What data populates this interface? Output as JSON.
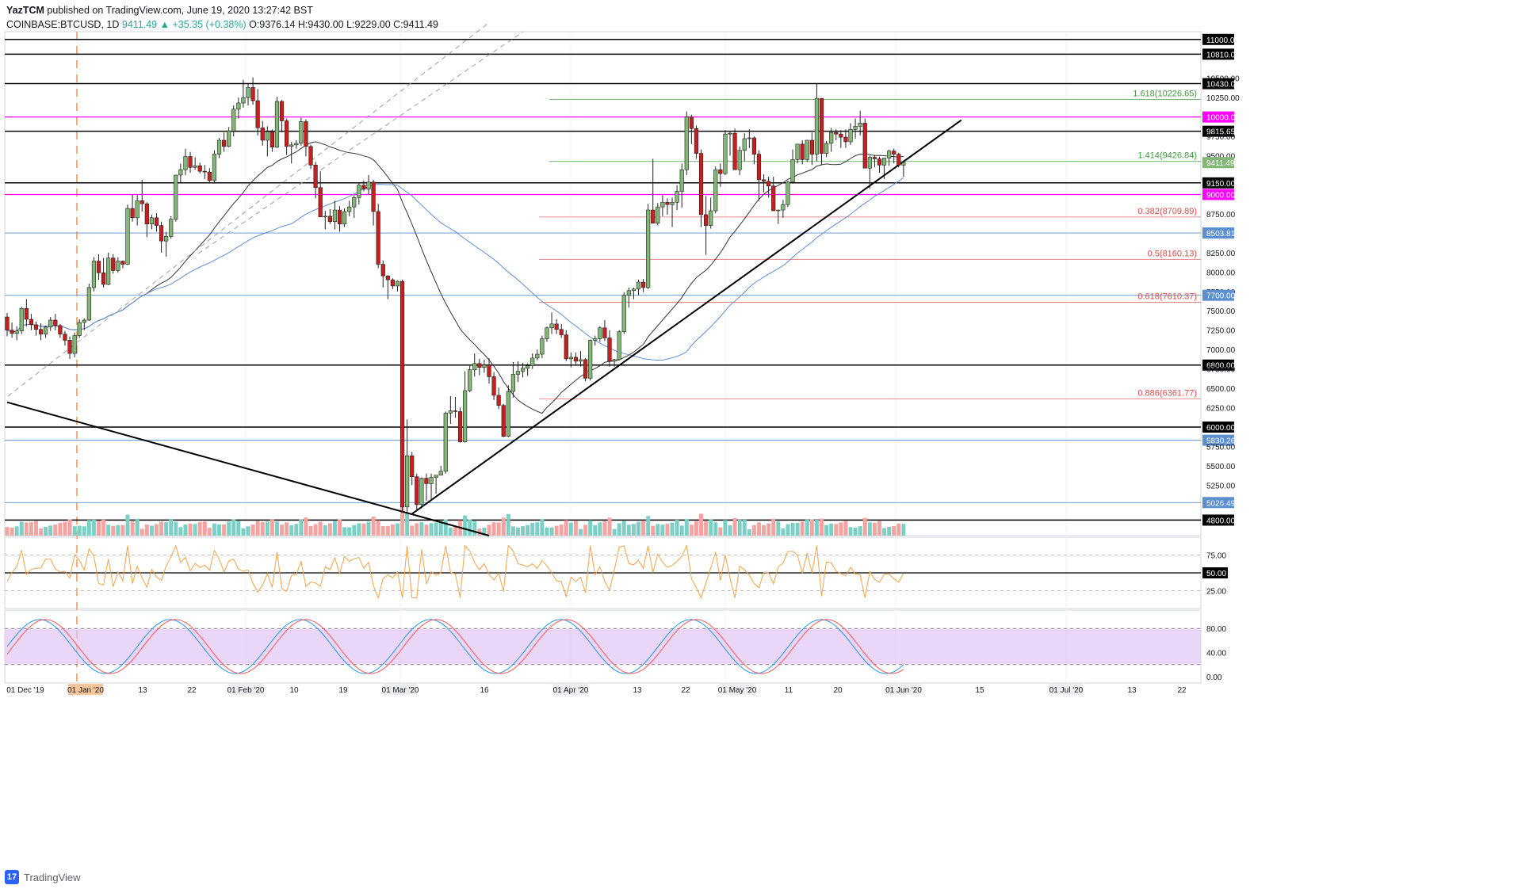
{
  "header": {
    "publisher": "YazTCM",
    "published_text": "published on TradingView.com, June 19, 2020 13:27:42 BST",
    "symbol": "COINBASE:BTCUSD, 1D",
    "last": "9411.49",
    "change": "▲ +35.35 (+0.38%)",
    "ohlc": "O:9376.14 H:9430.00 L:9229.00 C:9411.49"
  },
  "footer": {
    "brand": "TradingView",
    "logo": "17"
  },
  "colors": {
    "up": "#26a69a",
    "down": "#ef5350",
    "up_body": "#82b775",
    "down_body": "#c81e1e",
    "magenta": "#ff00ff",
    "fib_green": "#3d9a3d",
    "fib_red": "#e04848",
    "ma200": "#5b8fd0",
    "rsi": "#f2a24b",
    "stoch_k": "#2196f3",
    "stoch_d": "#ff5252",
    "stoch_band": "#e1c4f2"
  },
  "chart_data": {
    "type": "candlestick",
    "instrument": "COINBASE:BTCUSD",
    "timeframe": "1D",
    "price_scale": {
      "min": 4600,
      "max": 11100,
      "ticks": [
        "11000.00",
        "10810.00",
        "10500.00",
        "10430.00",
        "10250.00",
        "10000.00",
        "9815.65",
        "9750.00",
        "9500.00",
        "9411.49",
        "9150.00",
        "9000.00",
        "8750.00",
        "8503.81",
        "8250.00",
        "8000.00",
        "7750.00",
        "7700.00",
        "7500.00",
        "7250.00",
        "7000.00",
        "6800.00",
        "6750.00",
        "6500.00",
        "6250.00",
        "6000.00",
        "5830.26",
        "5750.00",
        "5500.00",
        "5250.00",
        "5026.49",
        "4800.00"
      ]
    },
    "x_labels": [
      "01 Dec '19",
      "01 Jan '20",
      "13",
      "22",
      "01 Feb '20",
      "10",
      "19",
      "01 Mar '20",
      "16",
      "01 Apr '20",
      "13",
      "22",
      "01 May '20",
      "11",
      "20",
      "01 Jun '20",
      "15",
      "01 Jul '20",
      "13",
      "22"
    ],
    "level_lines": [
      {
        "price": 11000,
        "label": "11000.00",
        "style": "black"
      },
      {
        "price": 10810,
        "label": "10810.00",
        "style": "black"
      },
      {
        "price": 10430,
        "label": "10430.00",
        "style": "black"
      },
      {
        "price": 10000,
        "label": "10000.00",
        "style": "magenta"
      },
      {
        "price": 9815.65,
        "label": "9815.65",
        "style": "black"
      },
      {
        "price": 9150,
        "label": "9150.00",
        "style": "black"
      },
      {
        "price": 9000,
        "label": "9000.00",
        "style": "magenta"
      },
      {
        "price": 6800,
        "label": "6800.00",
        "style": "black"
      },
      {
        "price": 6000,
        "label": "6000.00",
        "style": "black"
      },
      {
        "price": 4800,
        "label": "4800.00",
        "style": "black"
      },
      {
        "price": 8503.81,
        "label": "8503.81",
        "style": "blue"
      },
      {
        "price": 7700,
        "label": "7700.00",
        "style": "blue"
      },
      {
        "price": 5830.26,
        "label": "5830.26",
        "style": "blue"
      },
      {
        "price": 5026.49,
        "label": "5026.49",
        "style": "blue"
      }
    ],
    "fib_levels": [
      {
        "price": 10226.65,
        "label": "1.618(10226.65)",
        "color": "green"
      },
      {
        "price": 9426.84,
        "label": "1.414(9426.84)",
        "color": "green"
      },
      {
        "price": 8709.89,
        "label": "0.382(8709.89)",
        "color": "red"
      },
      {
        "price": 8160.13,
        "label": "0.5(8160.13)",
        "color": "red"
      },
      {
        "price": 7610.37,
        "label": "0.618(7610.37)",
        "color": "red"
      },
      {
        "price": 6361.77,
        "label": "0.886(6361.77)",
        "color": "red"
      }
    ],
    "last_price": 9411.49,
    "candles_ohlc": [
      [
        7420,
        7470,
        7170,
        7250
      ],
      [
        7250,
        7350,
        7150,
        7210
      ],
      [
        7210,
        7300,
        7120,
        7240
      ],
      [
        7240,
        7550,
        7200,
        7530
      ],
      [
        7530,
        7650,
        7300,
        7390
      ],
      [
        7390,
        7460,
        7250,
        7320
      ],
      [
        7320,
        7360,
        7180,
        7260
      ],
      [
        7260,
        7340,
        7120,
        7200
      ],
      [
        7200,
        7310,
        7150,
        7290
      ],
      [
        7290,
        7420,
        7240,
        7380
      ],
      [
        7380,
        7460,
        7250,
        7310
      ],
      [
        7310,
        7330,
        7150,
        7200
      ],
      [
        7200,
        7240,
        7050,
        7120
      ],
      [
        7120,
        7170,
        6880,
        6950
      ],
      [
        6950,
        7220,
        6900,
        7180
      ],
      [
        7180,
        7390,
        7150,
        7350
      ],
      [
        7350,
        7400,
        7250,
        7380
      ],
      [
        7380,
        7850,
        7370,
        7800
      ],
      [
        7800,
        8190,
        7750,
        8140
      ],
      [
        8140,
        8230,
        7900,
        7990
      ],
      [
        7990,
        8180,
        7800,
        7840
      ],
      [
        7840,
        8250,
        7830,
        8180
      ],
      [
        8180,
        8230,
        7980,
        8020
      ],
      [
        8020,
        8190,
        7990,
        8140
      ],
      [
        8140,
        8150,
        8050,
        8100
      ],
      [
        8100,
        8870,
        8090,
        8820
      ],
      [
        8820,
        9000,
        8650,
        8700
      ],
      [
        8700,
        8990,
        8600,
        8920
      ],
      [
        8920,
        9190,
        8780,
        8880
      ],
      [
        8880,
        8900,
        8450,
        8620
      ],
      [
        8620,
        8740,
        8550,
        8700
      ],
      [
        8700,
        8760,
        8520,
        8600
      ],
      [
        8600,
        8650,
        8250,
        8400
      ],
      [
        8400,
        8520,
        8200,
        8460
      ],
      [
        8460,
        8720,
        8430,
        8680
      ],
      [
        8680,
        9250,
        8650,
        9250
      ],
      [
        9250,
        9400,
        9150,
        9320
      ],
      [
        9320,
        9590,
        9250,
        9490
      ],
      [
        9490,
        9550,
        9280,
        9350
      ],
      [
        9350,
        9480,
        9320,
        9370
      ],
      [
        9370,
        9410,
        9270,
        9300
      ],
      [
        9300,
        9380,
        9200,
        9290
      ],
      [
        9290,
        9340,
        9150,
        9180
      ],
      [
        9180,
        9570,
        9140,
        9520
      ],
      [
        9520,
        9730,
        9470,
        9700
      ],
      [
        9700,
        9800,
        9550,
        9620
      ],
      [
        9620,
        9870,
        9610,
        9820
      ],
      [
        9820,
        10150,
        9750,
        10100
      ],
      [
        10100,
        10250,
        9980,
        10180
      ],
      [
        10180,
        10480,
        10120,
        10250
      ],
      [
        10250,
        10430,
        10150,
        10380
      ],
      [
        10380,
        10510,
        10160,
        10210
      ],
      [
        10210,
        10360,
        9760,
        9860
      ],
      [
        9860,
        9950,
        9630,
        9700
      ],
      [
        9700,
        9880,
        9490,
        9810
      ],
      [
        9810,
        9840,
        9550,
        9610
      ],
      [
        9610,
        10260,
        9600,
        10200
      ],
      [
        10200,
        10220,
        9800,
        9950
      ],
      [
        9950,
        9980,
        9510,
        9620
      ],
      [
        9620,
        9680,
        9400,
        9640
      ],
      [
        9640,
        9700,
        9590,
        9660
      ],
      [
        9660,
        9990,
        9630,
        9940
      ],
      [
        9940,
        9970,
        9490,
        9620
      ],
      [
        9620,
        9640,
        9330,
        9380
      ],
      [
        9380,
        9420,
        8950,
        9090
      ],
      [
        9090,
        9300,
        8870,
        8710
      ],
      [
        8710,
        8790,
        8550,
        8720
      ],
      [
        8720,
        8810,
        8620,
        8650
      ],
      [
        8650,
        8920,
        8550,
        8800
      ],
      [
        8800,
        8850,
        8520,
        8620
      ],
      [
        8620,
        8820,
        8580,
        8780
      ],
      [
        8780,
        8920,
        8720,
        8840
      ],
      [
        8840,
        8990,
        8700,
        8960
      ],
      [
        8960,
        9150,
        8870,
        9120
      ],
      [
        9120,
        9180,
        9040,
        9070
      ],
      [
        9070,
        9250,
        9000,
        9160
      ],
      [
        9160,
        9190,
        8600,
        8780
      ],
      [
        8780,
        8880,
        8050,
        8100
      ],
      [
        8100,
        8150,
        7800,
        7950
      ],
      [
        7950,
        7960,
        7650,
        7900
      ],
      [
        7900,
        7920,
        7780,
        7820
      ],
      [
        7820,
        7890,
        7750,
        7880
      ],
      [
        7880,
        7900,
        4900,
        4970
      ],
      [
        4970,
        6100,
        4900,
        5630
      ],
      [
        5630,
        5680,
        5250,
        5360
      ],
      [
        5360,
        5400,
        4930,
        5000
      ],
      [
        5000,
        5350,
        4950,
        5340
      ],
      [
        5340,
        5400,
        5050,
        5270
      ],
      [
        5270,
        5400,
        5050,
        5350
      ],
      [
        5350,
        5370,
        5140,
        5380
      ],
      [
        5380,
        5500,
        5380,
        5430
      ],
      [
        5430,
        6200,
        5400,
        6180
      ],
      [
        6180,
        6400,
        6040,
        6210
      ],
      [
        6210,
        6390,
        6120,
        6200
      ],
      [
        6200,
        6250,
        5800,
        5810
      ],
      [
        5810,
        6720,
        5800,
        6470
      ],
      [
        6470,
        6790,
        6450,
        6740
      ],
      [
        6740,
        6950,
        6650,
        6820
      ],
      [
        6820,
        6880,
        6670,
        6770
      ],
      [
        6770,
        6870,
        6700,
        6800
      ],
      [
        6800,
        6890,
        6560,
        6650
      ],
      [
        6650,
        6710,
        6350,
        6410
      ],
      [
        6410,
        6510,
        6230,
        6280
      ],
      [
        6280,
        6300,
        5870,
        5880
      ],
      [
        5880,
        6540,
        5870,
        6460
      ],
      [
        6460,
        6840,
        6380,
        6680
      ],
      [
        6680,
        6850,
        6580,
        6720
      ],
      [
        6720,
        6830,
        6640,
        6760
      ],
      [
        6760,
        6820,
        6660,
        6790
      ],
      [
        6790,
        6950,
        6750,
        6890
      ],
      [
        6890,
        7000,
        6860,
        6940
      ],
      [
        6940,
        7180,
        6890,
        7140
      ],
      [
        7140,
        7300,
        7100,
        7280
      ],
      [
        7280,
        7480,
        7200,
        7330
      ],
      [
        7330,
        7390,
        7200,
        7260
      ],
      [
        7260,
        7330,
        7150,
        7190
      ],
      [
        7190,
        7250,
        6850,
        6880
      ],
      [
        6880,
        6960,
        6770,
        6900
      ],
      [
        6900,
        6960,
        6810,
        6850
      ],
      [
        6850,
        6980,
        6780,
        6870
      ],
      [
        6870,
        6890,
        6590,
        6630
      ],
      [
        6630,
        7130,
        6600,
        7120
      ],
      [
        7120,
        7180,
        7050,
        7140
      ],
      [
        7140,
        7300,
        7100,
        7280
      ],
      [
        7280,
        7380,
        7110,
        7150
      ],
      [
        7150,
        7250,
        6780,
        6850
      ],
      [
        6850,
        6880,
        6780,
        6870
      ],
      [
        6870,
        7250,
        6860,
        7230
      ],
      [
        7230,
        7740,
        7200,
        7700
      ],
      [
        7700,
        7800,
        7540,
        7760
      ],
      [
        7760,
        7800,
        7650,
        7780
      ],
      [
        7780,
        7900,
        7700,
        7870
      ],
      [
        7870,
        7910,
        7740,
        7800
      ],
      [
        7800,
        8880,
        7780,
        8800
      ],
      [
        8800,
        9460,
        8650,
        8630
      ],
      [
        8630,
        8890,
        8600,
        8840
      ],
      [
        8840,
        8990,
        8720,
        8900
      ],
      [
        8900,
        8950,
        8740,
        8870
      ],
      [
        8870,
        8960,
        8580,
        8900
      ],
      [
        8900,
        9120,
        8800,
        9040
      ],
      [
        9040,
        9400,
        8830,
        9320
      ],
      [
        9320,
        10070,
        9250,
        10000
      ],
      [
        10000,
        10030,
        9650,
        9850
      ],
      [
        9850,
        9890,
        9460,
        9530
      ],
      [
        9530,
        9580,
        8580,
        8740
      ],
      [
        8740,
        8980,
        8220,
        8600
      ],
      [
        8600,
        8960,
        8560,
        8790
      ],
      [
        8790,
        9360,
        8760,
        9320
      ],
      [
        9320,
        9400,
        9100,
        9270
      ],
      [
        9270,
        9830,
        9250,
        9780
      ],
      [
        9780,
        9820,
        9500,
        9790
      ],
      [
        9790,
        9850,
        9330,
        9320
      ],
      [
        9320,
        9620,
        9250,
        9570
      ],
      [
        9570,
        9790,
        9430,
        9720
      ],
      [
        9720,
        9840,
        9600,
        9730
      ],
      [
        9730,
        9750,
        9390,
        9520
      ],
      [
        9520,
        9570,
        8920,
        9190
      ],
      [
        9190,
        9260,
        9030,
        9170
      ],
      [
        9170,
        9230,
        8960,
        9110
      ],
      [
        9110,
        9230,
        8880,
        8790
      ],
      [
        8790,
        8800,
        8620,
        8800
      ],
      [
        8800,
        8930,
        8700,
        8870
      ],
      [
        8870,
        9180,
        8840,
        9160
      ],
      [
        9160,
        9580,
        9150,
        9450
      ],
      [
        9450,
        9630,
        9400,
        9650
      ],
      [
        9650,
        9700,
        9390,
        9450
      ],
      [
        9450,
        9700,
        9420,
        9700
      ],
      [
        9700,
        9800,
        9380,
        9520
      ],
      [
        9520,
        10430,
        9430,
        10240
      ],
      [
        10240,
        10230,
        9380,
        9530
      ],
      [
        9530,
        9690,
        9480,
        9660
      ],
      [
        9660,
        9860,
        9550,
        9800
      ],
      [
        9800,
        9840,
        9700,
        9780
      ],
      [
        9780,
        9830,
        9600,
        9740
      ],
      [
        9740,
        9840,
        9600,
        9680
      ],
      [
        9680,
        9920,
        9640,
        9840
      ],
      [
        9840,
        9980,
        9720,
        9880
      ],
      [
        9880,
        10080,
        9760,
        9920
      ],
      [
        9920,
        9980,
        9600,
        9340
      ],
      [
        9340,
        9500,
        9080,
        9480
      ],
      [
        9480,
        9510,
        9350,
        9460
      ],
      [
        9460,
        9490,
        9280,
        9380
      ],
      [
        9380,
        9450,
        9200,
        9470
      ],
      [
        9470,
        9580,
        9370,
        9560
      ],
      [
        9560,
        9590,
        9400,
        9520
      ],
      [
        9520,
        9540,
        9350,
        9380
      ],
      [
        9380,
        9430,
        9229,
        9411.49
      ]
    ],
    "volume_note": "volume histogram colored by candle direction",
    "indicators": {
      "ma_100": "black moving average",
      "ma_200": "blue moving average",
      "rsi": {
        "levels": [
          "75.00",
          "50.00",
          "25.00"
        ],
        "current": "50.00"
      },
      "stoch_rsi": {
        "levels": [
          "80.00",
          "40.00",
          "0.00"
        ],
        "band": [
          20,
          80
        ]
      }
    },
    "trend_lines": [
      {
        "name": "rising support",
        "from": [
          84,
          4880
        ],
        "to": [
          198,
          9960
        ]
      },
      {
        "name": "falling resistance",
        "from": [
          0,
          6320
        ],
        "to": [
          100,
          4600
        ]
      }
    ]
  }
}
